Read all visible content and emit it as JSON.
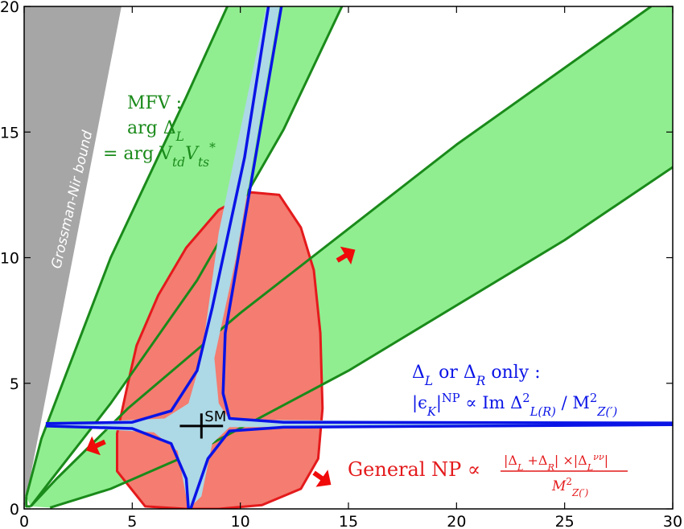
{
  "chart_data": {
    "type": "area",
    "xlim": [
      0,
      30
    ],
    "ylim": [
      0,
      20
    ],
    "x_ticks": [
      "0",
      "5",
      "10",
      "15",
      "20",
      "25",
      "30"
    ],
    "y_ticks": [
      "0",
      "5",
      "10",
      "15",
      "20"
    ],
    "grid": false,
    "colors": {
      "gray_region": "#a6a6a6",
      "green_fill": "#90ee90",
      "green_line": "#1a8a1a",
      "red_fill": "#f47c70",
      "red_line": "#e41a1c",
      "blue_fill": "#add8e6",
      "blue_line": "#0a14e6",
      "arrow": "#f00a0a"
    },
    "gray_region": {
      "label": "Grossman-Nir bound",
      "polygon": [
        [
          0,
          0
        ],
        [
          4.5,
          20
        ],
        [
          0,
          20
        ]
      ]
    },
    "mfv_bands": [
      {
        "inner_slope_lower": 0.72,
        "inner_slope_upper": 1.06
      },
      {
        "inner_slope_lower": 0.42,
        "inner_slope_upper": 0.74
      }
    ],
    "red_region_outline": [
      [
        7.5,
        0
      ],
      [
        5.6,
        0.1
      ],
      [
        4.3,
        1.5
      ],
      [
        4.3,
        3.0
      ],
      [
        4.8,
        5.0
      ],
      [
        5.2,
        6.5
      ],
      [
        6.2,
        8.5
      ],
      [
        7.5,
        10.4
      ],
      [
        9.0,
        11.9
      ],
      [
        10.5,
        12.6
      ],
      [
        11.8,
        12.5
      ],
      [
        12.8,
        11.2
      ],
      [
        13.4,
        9.5
      ],
      [
        13.7,
        7.0
      ],
      [
        13.8,
        4.0
      ],
      [
        13.6,
        2.0
      ],
      [
        12.8,
        0.8
      ],
      [
        11.0,
        0.15
      ],
      [
        9.0,
        0
      ],
      [
        7.5,
        0
      ]
    ],
    "blue_curve_points": [
      [
        1.0,
        3.3
      ],
      [
        7.6,
        3.3
      ],
      [
        9.3,
        3.35
      ],
      [
        30.0,
        3.38
      ],
      [
        7.7,
        0
      ],
      [
        8.5,
        3.3
      ],
      [
        11.8,
        20.0
      ]
    ],
    "sm_point": {
      "label": "SM",
      "x": 8.2,
      "y": 3.3,
      "x_err": 1.0,
      "y_err": 0.5
    },
    "arrows": [
      {
        "x": 14.9,
        "y": 10.1,
        "dx": 1.0,
        "dy": 0.6
      },
      {
        "x": 3.3,
        "y": 2.5,
        "dx": -1.1,
        "dy": -0.5
      },
      {
        "x": 13.8,
        "y": 1.2,
        "dx": 1.0,
        "dy": -0.7
      }
    ],
    "annotations": {
      "mfv_line1": "MFV :",
      "mfv_line2": "arg Δ",
      "mfv_line2_sub": "L",
      "mfv_line3_eq": "= arg V",
      "mfv_line3_sub1": "td",
      "mfv_line3_v": "V",
      "mfv_line3_sub2": "ts",
      "mfv_line3_sup": "*",
      "blue_line1": "Δ",
      "blue_line1_sub1": "L",
      "blue_line1_mid": " or Δ",
      "blue_line1_sub2": "R",
      "blue_line1_end": " only :",
      "blue_line2_a": "|ϵ",
      "blue_line2_sub": "K",
      "blue_line2_b": "|",
      "blue_line2_sup": "NP",
      "blue_line2_c": " ∝ Im Δ",
      "blue_line2_sup2": "2",
      "blue_line2_sub2": "L(R)",
      "blue_line2_d": " / M",
      "blue_line2_sup3": "2",
      "blue_line2_sub3": "Z(′)",
      "red_label": "General NP ∝",
      "red_frac_num": "|Δ",
      "red_frac_num_sub1": "L",
      "red_frac_num_mid": " +Δ",
      "red_frac_num_sub2": "R",
      "red_frac_num_end": "| ×|Δ",
      "red_frac_num_sub3": "L",
      "red_frac_num_sup3": "νν",
      "red_frac_num_close": "|",
      "red_frac_den": "M",
      "red_frac_den_sup": "2",
      "red_frac_den_sub": "Z(′)",
      "sm_label": "SM"
    }
  }
}
